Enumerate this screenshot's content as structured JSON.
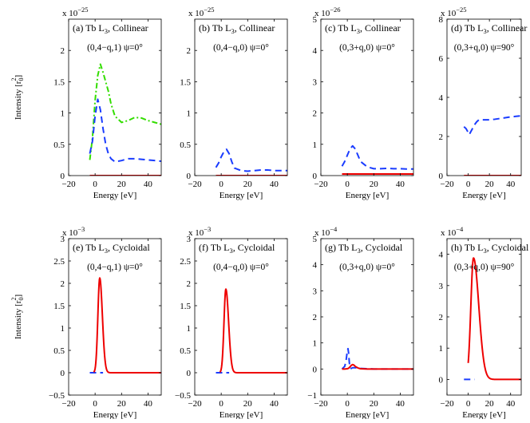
{
  "chart_data": [
    {
      "type": "line",
      "title": "(a) Tb L",
      "title_sub": "3",
      "title_rest": ", Collinear",
      "subtitle": "(0,4−q,1) ψ=0°",
      "multiplier": "x 10",
      "exponent": "−25",
      "xlabel": "Energy [eV]",
      "ylabel": "Intensity [r",
      "ylabel_sub": "0",
      "ylabel_sup": "2",
      "ylabel_end": "]",
      "xlim": [
        -20,
        50
      ],
      "ylim": [
        0,
        2.5
      ],
      "xticks": [
        -20,
        0,
        20,
        40
      ],
      "yticks": [
        0,
        0.5,
        1,
        1.5,
        2
      ],
      "yticklabels": [
        "0",
        "0.5",
        "1",
        "1.5",
        "2"
      ],
      "series": [
        {
          "name": "green dash-dot",
          "color": "#33dd00",
          "dash": "7,3,2,3",
          "x": [
            -4,
            -2,
            0,
            2,
            4,
            6,
            8,
            10,
            12,
            15,
            20,
            25,
            30,
            35,
            40,
            45,
            50
          ],
          "y": [
            0.25,
            0.6,
            1.2,
            1.6,
            1.78,
            1.65,
            1.5,
            1.35,
            1.15,
            0.95,
            0.85,
            0.88,
            0.93,
            0.92,
            0.88,
            0.85,
            0.82
          ]
        },
        {
          "name": "blue dashed",
          "color": "#1a3cff",
          "dash": "8,5",
          "x": [
            -4,
            -2,
            0,
            2,
            4,
            6,
            8,
            10,
            12,
            15,
            20,
            25,
            30,
            35,
            40,
            45,
            50
          ],
          "y": [
            0.35,
            0.55,
            0.95,
            1.22,
            1.05,
            0.75,
            0.5,
            0.35,
            0.27,
            0.22,
            0.24,
            0.27,
            0.27,
            0.26,
            0.25,
            0.24,
            0.23
          ]
        },
        {
          "name": "red solid",
          "color": "#ee0000",
          "dash": "",
          "x": [
            -4,
            50
          ],
          "y": [
            0.0,
            0.0
          ]
        }
      ]
    },
    {
      "type": "line",
      "title": "(b) Tb L",
      "title_sub": "3",
      "title_rest": ", Collinear",
      "subtitle": "(0,4−q,0) ψ=0°",
      "multiplier": "x 10",
      "exponent": "−25",
      "xlabel": "Energy [eV]",
      "xlim": [
        -20,
        50
      ],
      "ylim": [
        0,
        2.5
      ],
      "xticks": [
        -20,
        0,
        20,
        40
      ],
      "yticks": [
        0,
        0.5,
        1,
        1.5,
        2
      ],
      "yticklabels": [
        "0",
        "0.5",
        "1",
        "1.5",
        "2"
      ],
      "series": [
        {
          "name": "blue dashed",
          "color": "#1a3cff",
          "dash": "8,5",
          "x": [
            -4,
            -2,
            0,
            2,
            4,
            6,
            8,
            10,
            15,
            20,
            25,
            30,
            35,
            40,
            45,
            50
          ],
          "y": [
            0.13,
            0.2,
            0.3,
            0.38,
            0.42,
            0.35,
            0.22,
            0.12,
            0.08,
            0.07,
            0.08,
            0.09,
            0.09,
            0.08,
            0.08,
            0.08
          ]
        },
        {
          "name": "red solid",
          "color": "#ee0000",
          "dash": "",
          "x": [
            -4,
            50
          ],
          "y": [
            0.0,
            0.0
          ]
        }
      ]
    },
    {
      "type": "line",
      "title": "(c) Tb L",
      "title_sub": "3",
      "title_rest": ", Collinear",
      "subtitle": "(0,3+q,0) ψ=0°",
      "multiplier": "x 10",
      "exponent": "−26",
      "xlabel": "Energy [eV]",
      "xlim": [
        -20,
        50
      ],
      "ylim": [
        0,
        5
      ],
      "xticks": [
        -20,
        0,
        20,
        40
      ],
      "yticks": [
        0,
        1,
        2,
        3,
        4,
        5
      ],
      "yticklabels": [
        "0",
        "1",
        "2",
        "3",
        "4",
        "5"
      ],
      "series": [
        {
          "name": "blue dashed",
          "color": "#1a3cff",
          "dash": "8,5",
          "x": [
            -4,
            -2,
            0,
            2,
            4,
            6,
            8,
            10,
            15,
            20,
            25,
            30,
            35,
            40,
            45,
            50
          ],
          "y": [
            0.3,
            0.45,
            0.65,
            0.85,
            0.95,
            0.85,
            0.65,
            0.45,
            0.28,
            0.22,
            0.22,
            0.23,
            0.22,
            0.22,
            0.21,
            0.21
          ]
        },
        {
          "name": "red solid",
          "color": "#ee0000",
          "dash": "",
          "x": [
            -4,
            50
          ],
          "y": [
            0.05,
            0.05
          ]
        }
      ]
    },
    {
      "type": "line",
      "title": "(d) Tb L",
      "title_sub": "3",
      "title_rest": ", Collinear",
      "subtitle": "(0,3+q,0) ψ=90°",
      "multiplier": "x 10",
      "exponent": "−25",
      "xlabel": "Energy [eV]",
      "xlim": [
        -20,
        50
      ],
      "ylim": [
        0,
        8
      ],
      "xticks": [
        -20,
        0,
        20,
        40
      ],
      "yticks": [
        0,
        2,
        4,
        6,
        8
      ],
      "yticklabels": [
        "0",
        "2",
        "4",
        "6",
        "8"
      ],
      "series": [
        {
          "name": "blue dashed",
          "color": "#1a3cff",
          "dash": "8,5",
          "x": [
            -4,
            -2,
            0,
            1,
            2,
            4,
            6,
            8,
            10,
            15,
            20,
            25,
            30,
            35,
            40,
            45,
            50
          ],
          "y": [
            2.5,
            2.4,
            2.2,
            2.1,
            2.2,
            2.4,
            2.6,
            2.75,
            2.85,
            2.85,
            2.85,
            2.88,
            2.92,
            2.96,
            3.0,
            3.03,
            3.06
          ]
        },
        {
          "name": "red solid",
          "color": "#ee0000",
          "dash": "",
          "x": [
            -4,
            50
          ],
          "y": [
            0.0,
            0.0
          ]
        }
      ]
    },
    {
      "type": "line",
      "title": "(e) Tb L",
      "title_sub": "3",
      "title_rest": ", Cycloidal",
      "subtitle": "(0,4−q,1) ψ=0°",
      "multiplier": "x 10",
      "exponent": "−3",
      "xlabel": "Energy [eV]",
      "ylabel": "Intensity [r",
      "ylabel_sub": "0",
      "ylabel_sup": "2",
      "ylabel_end": "]",
      "xlim": [
        -20,
        50
      ],
      "ylim": [
        -0.5,
        3
      ],
      "xticks": [
        -20,
        0,
        20,
        40
      ],
      "yticks": [
        -0.5,
        0,
        0.5,
        1,
        1.5,
        2,
        2.5,
        3
      ],
      "yticklabels": [
        "−0.5",
        "0",
        "0.5",
        "1",
        "1.5",
        "2",
        "2.5",
        "3"
      ],
      "series": [
        {
          "name": "blue dashed",
          "color": "#1a3cff",
          "dash": "8,5",
          "x": [
            -4,
            6
          ],
          "y": [
            0.0,
            0.0
          ]
        },
        {
          "name": "red solid",
          "color": "#ee0000",
          "dash": "",
          "x": [
            6,
            7,
            8,
            9,
            10,
            12,
            15,
            20,
            30,
            40,
            50
          ],
          "y": [
            0.0,
            0.0,
            0.0,
            0.0,
            0.0,
            0.0,
            0.0,
            0.0,
            0.0,
            0.0,
            0.0
          ],
          "peak": {
            "center": 3.5,
            "height": 2.12,
            "sigmaL": 1.4,
            "sigmaR": 2.0,
            "from": -1,
            "to": 50
          }
        }
      ]
    },
    {
      "type": "line",
      "title": "(f) Tb L",
      "title_sub": "3",
      "title_rest": ", Cycloidal",
      "subtitle": "(0,4−q,0) ψ=0°",
      "multiplier": "x 10",
      "exponent": "−3",
      "xlabel": "Energy [eV]",
      "xlim": [
        -20,
        50
      ],
      "ylim": [
        -0.5,
        3
      ],
      "xticks": [
        -20,
        0,
        20,
        40
      ],
      "yticks": [
        -0.5,
        0,
        0.5,
        1,
        1.5,
        2,
        2.5,
        3
      ],
      "yticklabels": [
        "−0.5",
        "0",
        "0.5",
        "1",
        "1.5",
        "2",
        "2.5",
        "3"
      ],
      "series": [
        {
          "name": "blue dashed",
          "color": "#1a3cff",
          "dash": "8,5",
          "x": [
            -4,
            6
          ],
          "y": [
            0.0,
            0.0
          ]
        },
        {
          "name": "red solid",
          "color": "#ee0000",
          "dash": "",
          "x": [
            6,
            50
          ],
          "y": [
            0.0,
            0.0
          ],
          "peak": {
            "center": 3.5,
            "height": 1.87,
            "sigmaL": 1.4,
            "sigmaR": 2.1,
            "from": -1,
            "to": 50
          }
        }
      ]
    },
    {
      "type": "line",
      "title": "(g) Tb L",
      "title_sub": "3",
      "title_rest": ", Cycloidal",
      "subtitle": "(0,3+q,0) ψ=0°",
      "multiplier": "x 10",
      "exponent": "−4",
      "xlabel": "Energy [eV]",
      "xlim": [
        -20,
        50
      ],
      "ylim": [
        -1,
        5
      ],
      "xticks": [
        -20,
        0,
        20,
        40
      ],
      "yticks": [
        -1,
        0,
        1,
        2,
        3,
        4,
        5
      ],
      "yticklabels": [
        "−1",
        "0",
        "1",
        "2",
        "3",
        "4",
        "5"
      ],
      "series": [
        {
          "name": "blue dashed",
          "color": "#1a3cff",
          "dash": "8,5",
          "x": [
            -4,
            -2,
            -1,
            0,
            0.5,
            1,
            1.5,
            2,
            3,
            4,
            6,
            10,
            20,
            50
          ],
          "y": [
            0.0,
            0.1,
            0.3,
            0.7,
            0.78,
            0.6,
            0.25,
            0.05,
            0.02,
            0.05,
            0.05,
            0.02,
            0.0,
            0.0
          ]
        },
        {
          "name": "red solid",
          "color": "#ee0000",
          "dash": "",
          "x": [
            -4,
            -2,
            0,
            1,
            2,
            3,
            4,
            5,
            6,
            8,
            10,
            15,
            20,
            30,
            40,
            50
          ],
          "y": [
            0.0,
            0.0,
            0.01,
            0.03,
            0.08,
            0.14,
            0.17,
            0.15,
            0.1,
            0.04,
            0.01,
            0.0,
            0.0,
            0.0,
            0.0,
            0.0
          ]
        }
      ]
    },
    {
      "type": "line",
      "title": "(h) Tb L",
      "title_sub": "3",
      "title_rest": ", Cycloidal",
      "subtitle": "(0,3+q,0) ψ=90°",
      "multiplier": "x 10",
      "exponent": "−4",
      "xlabel": "Energy [eV]",
      "xlim": [
        -20,
        50
      ],
      "ylim": [
        -0.5,
        4.5
      ],
      "xticks": [
        -20,
        0,
        20,
        40
      ],
      "yticks": [
        0,
        1,
        2,
        3,
        4
      ],
      "yticklabels": [
        "0",
        "1",
        "2",
        "3",
        "4"
      ],
      "series": [
        {
          "name": "blue dashed",
          "color": "#1a3cff",
          "dash": "8,5",
          "x": [
            -4,
            6
          ],
          "y": [
            0.0,
            0.0
          ]
        },
        {
          "name": "red solid",
          "color": "#ee0000",
          "dash": "",
          "x": [
            6,
            50
          ],
          "y": [
            0.0,
            0.0
          ],
          "peak": {
            "center": 5,
            "height": 3.88,
            "sigmaL": 2.5,
            "sigmaR": 5.0,
            "from": 0,
            "to": 50
          }
        }
      ]
    }
  ]
}
